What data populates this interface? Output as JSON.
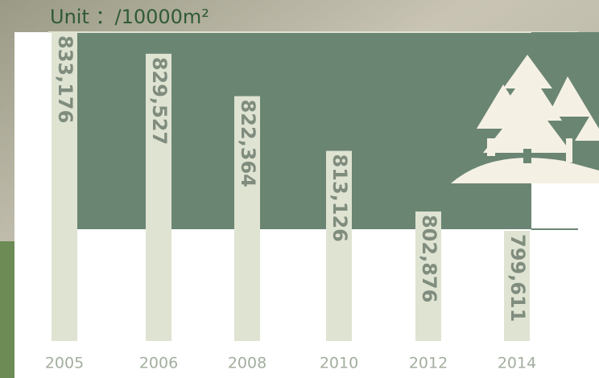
{
  "chart_data": {
    "type": "bar",
    "title": "Unit ：/10000m²",
    "categories": [
      "2005",
      "2006",
      "2008",
      "2010",
      "2012",
      "2014"
    ],
    "values": [
      833176,
      829527,
      822364,
      813126,
      802876,
      799611
    ],
    "value_labels": [
      "833,176",
      "829,527",
      "822,364",
      "813,126",
      "802,876",
      "799,611"
    ],
    "color": "#dfe3d2"
  }
}
